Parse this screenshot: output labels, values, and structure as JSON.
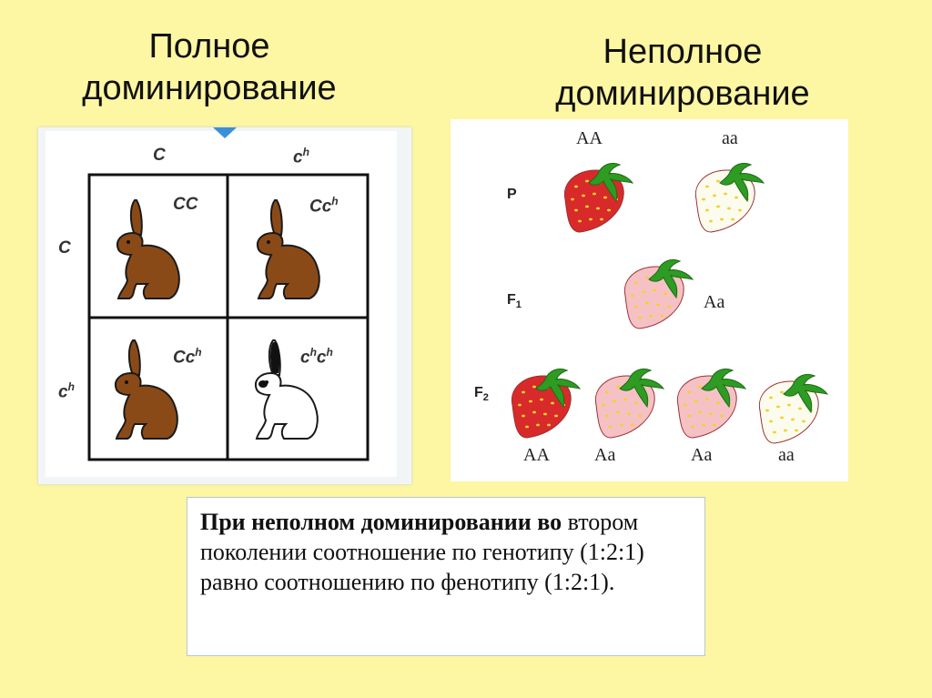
{
  "titles": {
    "left_line1": "Полное",
    "left_line2": "доминирование",
    "right_line1": "Неполное",
    "right_line2": "доминирование"
  },
  "punnett": {
    "col_headers": [
      "C",
      "c",
      "h"
    ],
    "row_headers": [
      "C",
      "c",
      "h"
    ],
    "cells": [
      {
        "g1": "CC",
        "g1sup": "",
        "g2": "",
        "g2sup": "",
        "color": "brown"
      },
      {
        "g1": "Cc",
        "g1sup": "h",
        "g2": "",
        "g2sup": "",
        "color": "brown"
      },
      {
        "g1": "Cc",
        "g1sup": "h",
        "g2": "",
        "g2sup": "",
        "color": "brown"
      },
      {
        "g1": "c",
        "g1sup": "h",
        "g2": "c",
        "g2sup": "h",
        "color": "white"
      }
    ]
  },
  "strawberry": {
    "P_label": "P",
    "F1_label": "F",
    "F1_sub": "1",
    "F2_label": "F",
    "F2_sub": "2",
    "P_genotypes": [
      "AA",
      "aa"
    ],
    "F1_genotype": "Aa",
    "F2_genotypes": [
      "AA",
      "Aa",
      "Aa",
      "aa"
    ]
  },
  "caption": {
    "bold": "При неполном доминировании во",
    "rest": " втором поколении соотношение по генотипу (1:2:1) равно соотношению по фенотипу (1:2:1)."
  },
  "colors": {
    "background": "#fdf6a3",
    "rabbit_brown": "#8a4a17",
    "strawberry_red": "#d82a2a",
    "strawberry_pink": "#f6c1c4",
    "leaf_green": "#2e9b22"
  }
}
